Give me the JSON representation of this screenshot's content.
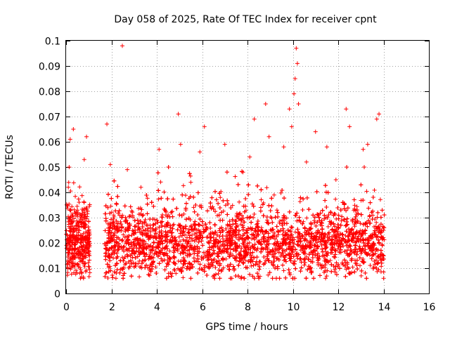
{
  "chart_data": {
    "type": "scatter",
    "title": "Day 058 of 2025, Rate Of TEC Index for receiver cpnt",
    "xlabel": "GPS time / hours",
    "ylabel": "ROTI / TECUs",
    "xlim": [
      0,
      16
    ],
    "ylim": [
      0,
      0.1
    ],
    "x_ticks": [
      0,
      2,
      4,
      6,
      8,
      10,
      12,
      14,
      16
    ],
    "y_ticks": [
      0,
      0.01,
      0.02,
      0.03,
      0.04,
      0.05,
      0.06,
      0.07,
      0.08,
      0.09,
      0.1
    ],
    "x_tick_labels": [
      "0",
      "2",
      "4",
      "6",
      "8",
      "10",
      "12",
      "14",
      "16"
    ],
    "y_tick_labels": [
      "0",
      "0.01",
      "0.02",
      "0.03",
      "0.04",
      "0.05",
      "0.06",
      "0.07",
      "0.08",
      "0.09",
      "0.1"
    ],
    "grid": true,
    "marker": "+",
    "marker_color": "#ff0000",
    "series": [
      {
        "name": "ROTI",
        "segments": [
          {
            "x_range": [
              0.0,
              1.05
            ],
            "typical_range": [
              0.006,
              0.045
            ],
            "median": 0.02
          },
          {
            "x_range": [
              1.7,
              14.05
            ],
            "typical_range": [
              0.006,
              0.045
            ],
            "median": 0.02
          }
        ],
        "x": [
          0.05,
          0.1,
          0.18,
          0.25,
          0.32,
          0.4,
          0.5,
          0.6,
          0.7,
          0.8,
          0.9,
          1.0,
          1.8,
          1.95,
          2.1,
          2.3,
          2.48,
          2.7,
          3.0,
          3.3,
          3.6,
          3.8,
          4.1,
          4.4,
          4.95,
          5.05,
          5.2,
          5.5,
          5.9,
          6.1,
          6.5,
          6.8,
          7.0,
          7.5,
          7.8,
          8.1,
          8.3,
          8.6,
          8.8,
          8.95,
          9.3,
          9.6,
          9.85,
          9.95,
          10.05,
          10.1,
          10.15,
          10.2,
          10.25,
          10.6,
          11.0,
          11.3,
          11.5,
          11.9,
          12.2,
          12.35,
          12.5,
          12.8,
          13.1,
          13.3,
          13.7,
          13.8,
          14.0
        ],
        "y": [
          0.018,
          0.042,
          0.061,
          0.028,
          0.065,
          0.014,
          0.033,
          0.008,
          0.022,
          0.053,
          0.062,
          0.025,
          0.067,
          0.051,
          0.031,
          0.022,
          0.098,
          0.049,
          0.019,
          0.042,
          0.027,
          0.012,
          0.057,
          0.031,
          0.071,
          0.059,
          0.026,
          0.044,
          0.056,
          0.066,
          0.022,
          0.038,
          0.059,
          0.024,
          0.048,
          0.054,
          0.069,
          0.041,
          0.075,
          0.062,
          0.033,
          0.058,
          0.073,
          0.066,
          0.079,
          0.085,
          0.097,
          0.091,
          0.075,
          0.052,
          0.064,
          0.021,
          0.058,
          0.045,
          0.036,
          0.073,
          0.066,
          0.028,
          0.057,
          0.059,
          0.069,
          0.071,
          0.025
        ]
      }
    ]
  }
}
